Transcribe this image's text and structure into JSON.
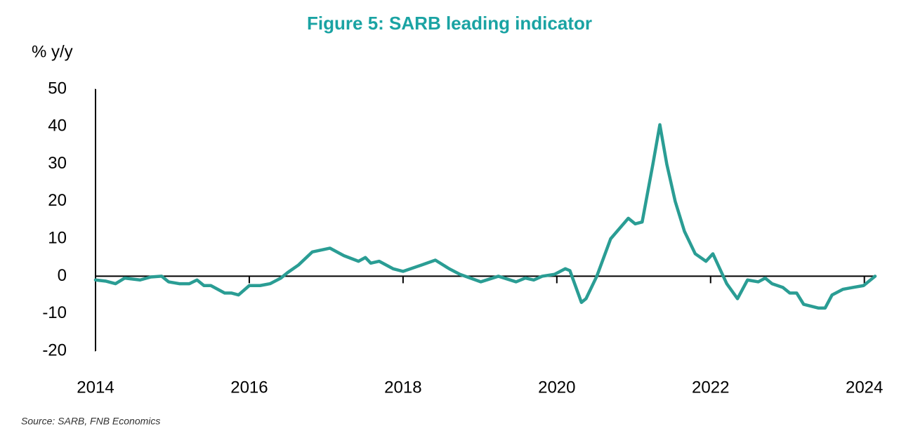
{
  "chart_data": {
    "type": "line",
    "title": "Figure 5: SARB leading indicator",
    "y_label": "% y/y",
    "source": "Source: SARB, FNB Economics",
    "color": "#2a9d94",
    "x": [
      2014.0,
      2014.13,
      2014.26,
      2014.38,
      2014.58,
      2014.72,
      2014.86,
      2014.95,
      2015.09,
      2015.22,
      2015.32,
      2015.41,
      2015.5,
      2015.68,
      2015.77,
      2015.86,
      2016.0,
      2016.14,
      2016.27,
      2016.41,
      2016.5,
      2016.64,
      2016.82,
      2017.05,
      2017.23,
      2017.42,
      2017.51,
      2017.58,
      2017.69,
      2017.87,
      2018.0,
      2018.24,
      2018.42,
      2018.6,
      2018.74,
      2019.01,
      2019.24,
      2019.47,
      2019.59,
      2019.7,
      2019.81,
      2019.97,
      2020.11,
      2020.17,
      2020.32,
      2020.38,
      2020.52,
      2020.7,
      2020.93,
      2021.02,
      2021.11,
      2021.25,
      2021.34,
      2021.43,
      2021.54,
      2021.66,
      2021.8,
      2021.94,
      2022.03,
      2022.12,
      2022.21,
      2022.35,
      2022.48,
      2022.62,
      2022.71,
      2022.8,
      2022.94,
      2023.03,
      2023.12,
      2023.21,
      2023.4,
      2023.49,
      2023.58,
      2023.72,
      2023.85,
      2023.99,
      2024.14
    ],
    "values": [
      -1,
      -1.3,
      -2,
      -0.5,
      -1,
      -0.2,
      0,
      -1.5,
      -2,
      -2,
      -1,
      -2.5,
      -2.5,
      -4.5,
      -4.5,
      -5,
      -2.5,
      -2.5,
      -2,
      -0.5,
      1,
      3,
      6.5,
      7.5,
      5.5,
      4,
      5,
      3.5,
      4,
      2,
      1.3,
      3,
      4.3,
      2,
      0.5,
      -1.5,
      0,
      -1.5,
      -0.5,
      -1,
      0,
      0.5,
      2,
      1.5,
      -7,
      -6,
      0,
      10,
      15.5,
      14,
      14.5,
      30,
      40.5,
      30,
      20,
      12,
      6,
      4,
      6,
      2,
      -2,
      -6,
      -1,
      -1.5,
      -0.5,
      -2,
      -3,
      -4.5,
      -4.5,
      -7.5,
      -8.5,
      -8.5,
      -5,
      -3.5,
      -3,
      -2.5,
      0
    ],
    "xlim": [
      2014,
      2024.14
    ],
    "xticks": [
      2014,
      2016,
      2018,
      2020,
      2022,
      2024
    ],
    "ylim": [
      -20,
      50
    ],
    "yticks": [
      -20,
      -10,
      0,
      10,
      20,
      30,
      40,
      50
    ]
  }
}
